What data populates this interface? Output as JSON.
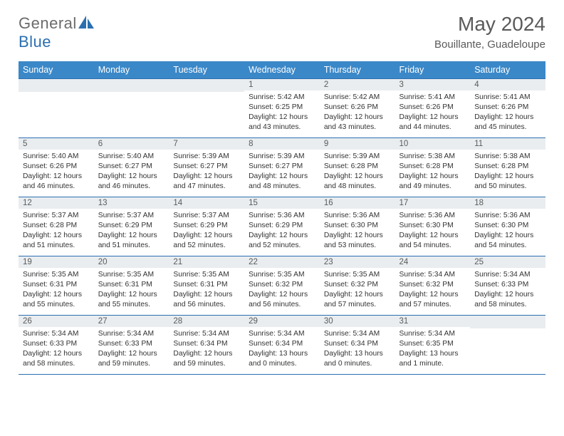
{
  "brand": {
    "part1": "General",
    "part2": "Blue"
  },
  "title": "May 2024",
  "location": "Bouillante, Guadeloupe",
  "colors": {
    "header_bg": "#3b88c8",
    "border": "#2b6fb0",
    "daynum_bg": "#e9edf0",
    "text": "#333333",
    "title_color": "#5a5a5a"
  },
  "columns": [
    "Sunday",
    "Monday",
    "Tuesday",
    "Wednesday",
    "Thursday",
    "Friday",
    "Saturday"
  ],
  "weeks": [
    [
      null,
      null,
      null,
      {
        "n": "1",
        "sr": "5:42 AM",
        "ss": "6:25 PM",
        "dl": "12 hours and 43 minutes."
      },
      {
        "n": "2",
        "sr": "5:42 AM",
        "ss": "6:26 PM",
        "dl": "12 hours and 43 minutes."
      },
      {
        "n": "3",
        "sr": "5:41 AM",
        "ss": "6:26 PM",
        "dl": "12 hours and 44 minutes."
      },
      {
        "n": "4",
        "sr": "5:41 AM",
        "ss": "6:26 PM",
        "dl": "12 hours and 45 minutes."
      }
    ],
    [
      {
        "n": "5",
        "sr": "5:40 AM",
        "ss": "6:26 PM",
        "dl": "12 hours and 46 minutes."
      },
      {
        "n": "6",
        "sr": "5:40 AM",
        "ss": "6:27 PM",
        "dl": "12 hours and 46 minutes."
      },
      {
        "n": "7",
        "sr": "5:39 AM",
        "ss": "6:27 PM",
        "dl": "12 hours and 47 minutes."
      },
      {
        "n": "8",
        "sr": "5:39 AM",
        "ss": "6:27 PM",
        "dl": "12 hours and 48 minutes."
      },
      {
        "n": "9",
        "sr": "5:39 AM",
        "ss": "6:28 PM",
        "dl": "12 hours and 48 minutes."
      },
      {
        "n": "10",
        "sr": "5:38 AM",
        "ss": "6:28 PM",
        "dl": "12 hours and 49 minutes."
      },
      {
        "n": "11",
        "sr": "5:38 AM",
        "ss": "6:28 PM",
        "dl": "12 hours and 50 minutes."
      }
    ],
    [
      {
        "n": "12",
        "sr": "5:37 AM",
        "ss": "6:28 PM",
        "dl": "12 hours and 51 minutes."
      },
      {
        "n": "13",
        "sr": "5:37 AM",
        "ss": "6:29 PM",
        "dl": "12 hours and 51 minutes."
      },
      {
        "n": "14",
        "sr": "5:37 AM",
        "ss": "6:29 PM",
        "dl": "12 hours and 52 minutes."
      },
      {
        "n": "15",
        "sr": "5:36 AM",
        "ss": "6:29 PM",
        "dl": "12 hours and 52 minutes."
      },
      {
        "n": "16",
        "sr": "5:36 AM",
        "ss": "6:30 PM",
        "dl": "12 hours and 53 minutes."
      },
      {
        "n": "17",
        "sr": "5:36 AM",
        "ss": "6:30 PM",
        "dl": "12 hours and 54 minutes."
      },
      {
        "n": "18",
        "sr": "5:36 AM",
        "ss": "6:30 PM",
        "dl": "12 hours and 54 minutes."
      }
    ],
    [
      {
        "n": "19",
        "sr": "5:35 AM",
        "ss": "6:31 PM",
        "dl": "12 hours and 55 minutes."
      },
      {
        "n": "20",
        "sr": "5:35 AM",
        "ss": "6:31 PM",
        "dl": "12 hours and 55 minutes."
      },
      {
        "n": "21",
        "sr": "5:35 AM",
        "ss": "6:31 PM",
        "dl": "12 hours and 56 minutes."
      },
      {
        "n": "22",
        "sr": "5:35 AM",
        "ss": "6:32 PM",
        "dl": "12 hours and 56 minutes."
      },
      {
        "n": "23",
        "sr": "5:35 AM",
        "ss": "6:32 PM",
        "dl": "12 hours and 57 minutes."
      },
      {
        "n": "24",
        "sr": "5:34 AM",
        "ss": "6:32 PM",
        "dl": "12 hours and 57 minutes."
      },
      {
        "n": "25",
        "sr": "5:34 AM",
        "ss": "6:33 PM",
        "dl": "12 hours and 58 minutes."
      }
    ],
    [
      {
        "n": "26",
        "sr": "5:34 AM",
        "ss": "6:33 PM",
        "dl": "12 hours and 58 minutes."
      },
      {
        "n": "27",
        "sr": "5:34 AM",
        "ss": "6:33 PM",
        "dl": "12 hours and 59 minutes."
      },
      {
        "n": "28",
        "sr": "5:34 AM",
        "ss": "6:34 PM",
        "dl": "12 hours and 59 minutes."
      },
      {
        "n": "29",
        "sr": "5:34 AM",
        "ss": "6:34 PM",
        "dl": "13 hours and 0 minutes."
      },
      {
        "n": "30",
        "sr": "5:34 AM",
        "ss": "6:34 PM",
        "dl": "13 hours and 0 minutes."
      },
      {
        "n": "31",
        "sr": "5:34 AM",
        "ss": "6:35 PM",
        "dl": "13 hours and 1 minute."
      },
      null
    ]
  ],
  "labels": {
    "sunrise": "Sunrise:",
    "sunset": "Sunset:",
    "daylight": "Daylight:"
  }
}
